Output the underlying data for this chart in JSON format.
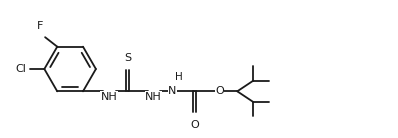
{
  "bg_color": "#ffffff",
  "line_color": "#1a1a1a",
  "font_size": 8.0,
  "line_width": 1.3,
  "fig_width": 3.98,
  "fig_height": 1.38,
  "dpi": 100,
  "xlim": [
    0,
    10.5
  ],
  "ylim": [
    0,
    3.5
  ]
}
